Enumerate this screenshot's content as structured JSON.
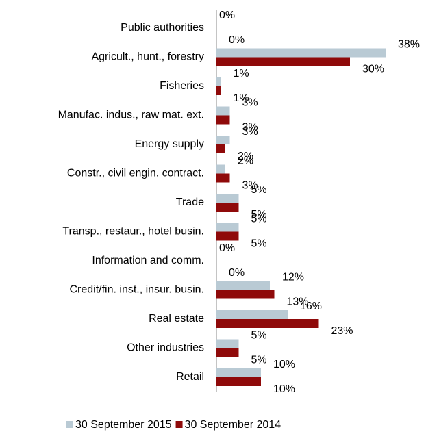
{
  "chart_data": {
    "type": "hbar",
    "categories": [
      "Public authorities",
      "Agricult., hunt., forestry",
      "Fisheries",
      "Manufac. indus., raw mat. ext.",
      "Energy supply",
      "Constr., civil engin. contract.",
      "Trade",
      "Transp., restaur., hotel busin.",
      "Information and comm.",
      "Credit/fin. inst., insur. busin.",
      "Real estate",
      "Other industries",
      "Retail"
    ],
    "series": [
      {
        "name": "30 September 2015",
        "color": "#b9cad4",
        "values": [
          0,
          38,
          1,
          3,
          3,
          2,
          5,
          5,
          0,
          12,
          16,
          5,
          10
        ],
        "value_labels": [
          "0%",
          "38%",
          "1%",
          "3%",
          "3%",
          "2%",
          "5%",
          "5%",
          "0%",
          "12%",
          "16%",
          "5%",
          "10%"
        ]
      },
      {
        "name": "30 September 2014",
        "color": "#8f0a0a",
        "values": [
          0,
          30,
          1,
          3,
          2,
          3,
          5,
          5,
          0,
          13,
          23,
          5,
          10
        ],
        "value_labels": [
          "0%",
          "30%",
          "1%",
          "3%",
          "2%",
          "3%",
          "5%",
          "5%",
          "0%",
          "13%",
          "23%",
          "5%",
          "10%"
        ]
      }
    ],
    "xlim": [
      0,
      40
    ]
  }
}
